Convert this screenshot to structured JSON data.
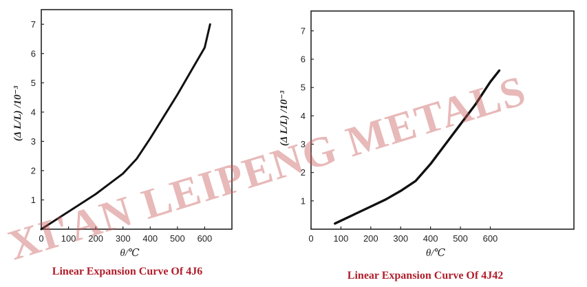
{
  "watermark": "XI'AN LEIPENG METALS",
  "colors": {
    "curve": "#111111",
    "caption": "#b01e2b",
    "watermark": "#c95a5a"
  },
  "chart_data": [
    {
      "type": "line",
      "title": "",
      "caption": "Linear Expansion Curve Of 4J6",
      "xlabel": "θ/℃",
      "ylabel": "(Δ L/L) /10⁻³",
      "xlim": [
        0,
        700
      ],
      "ylim": [
        0,
        7.5
      ],
      "xticks": [
        0,
        100,
        200,
        300,
        400,
        500,
        600
      ],
      "yticks": [
        1,
        2,
        3,
        4,
        5,
        6,
        7
      ],
      "grid": false,
      "series": [
        {
          "x": [
            0,
            50,
            100,
            150,
            200,
            250,
            300,
            350,
            400,
            450,
            500,
            550,
            600,
            620
          ],
          "y": [
            0,
            0.3,
            0.6,
            0.9,
            1.2,
            1.55,
            1.9,
            2.4,
            3.1,
            3.85,
            4.6,
            5.4,
            6.2,
            7.0
          ]
        }
      ]
    },
    {
      "type": "line",
      "title": "",
      "caption": "Linear Expansion Curve Of 4J42",
      "xlabel": "θ/℃",
      "ylabel": "(Δ L/L) /10⁻³",
      "xlim": [
        0,
        880
      ],
      "ylim": [
        0,
        7.7
      ],
      "xticks": [
        0,
        100,
        200,
        300,
        400,
        500,
        600
      ],
      "yticks": [
        1,
        2,
        3,
        4,
        5,
        6,
        7
      ],
      "grid": false,
      "series": [
        {
          "x": [
            80,
            150,
            200,
            250,
            300,
            350,
            400,
            450,
            500,
            550,
            600,
            630
          ],
          "y": [
            0.2,
            0.55,
            0.8,
            1.05,
            1.35,
            1.7,
            2.3,
            3.0,
            3.7,
            4.4,
            5.2,
            5.6
          ]
        }
      ]
    }
  ]
}
